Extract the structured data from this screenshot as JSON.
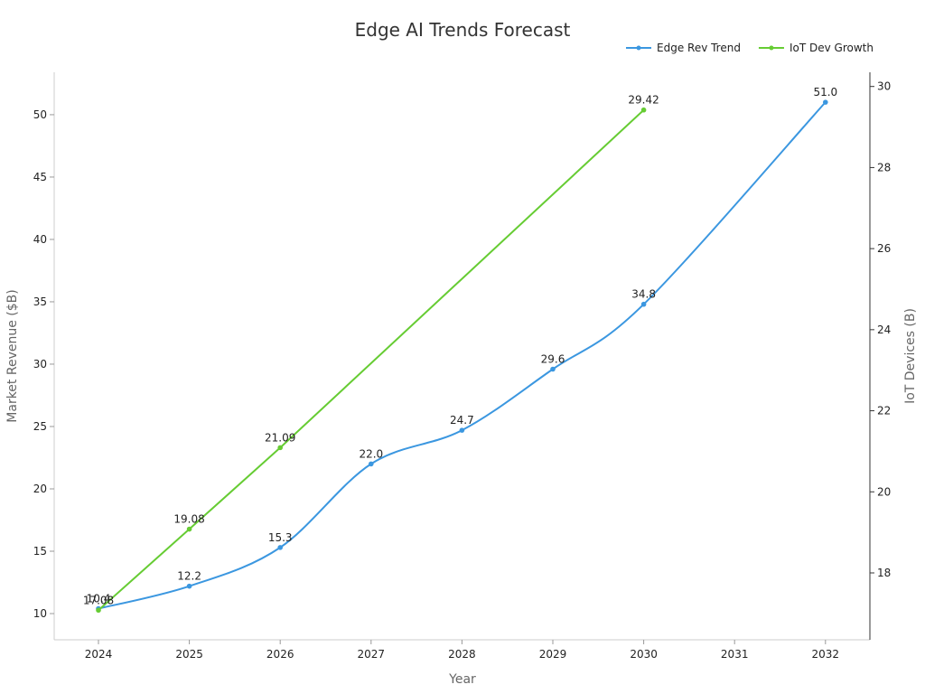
{
  "chart_data": {
    "type": "line",
    "title": "Edge AI Trends Forecast",
    "xlabel": "Year",
    "ylabel_left": "Market Revenue ($B)",
    "ylabel_right": "IoT Devices (B)",
    "x_ticks": [
      "2024",
      "2025",
      "2026",
      "2027",
      "2028",
      "2029",
      "2030",
      "2031",
      "2032"
    ],
    "y_left_ticks": [
      "10",
      "15",
      "20",
      "25",
      "30",
      "35",
      "40",
      "45",
      "50"
    ],
    "y_right_ticks": [
      "18",
      "20",
      "22",
      "24",
      "26",
      "28",
      "30"
    ],
    "y_left_range": [
      7.9,
      53.4
    ],
    "y_right_range": [
      16.35,
      30.35
    ],
    "legend_position": "top-right",
    "grid": false,
    "series": [
      {
        "name": "Edge Rev Trend",
        "axis": "left",
        "color": "#3b97e0",
        "smooth": true,
        "x": [
          2024,
          2025,
          2026,
          2027,
          2028,
          2029,
          2030,
          2032
        ],
        "values": [
          10.4,
          12.2,
          15.3,
          22.0,
          24.7,
          29.6,
          34.8,
          51.0
        ],
        "labels": [
          "10.4",
          "12.2",
          "15.3",
          "22.0",
          "24.7",
          "29.6",
          "34.8",
          "51.0"
        ]
      },
      {
        "name": "IoT Dev Growth",
        "axis": "right",
        "color": "#66cc33",
        "smooth": false,
        "x": [
          2024,
          2025,
          2026,
          2030
        ],
        "values": [
          17.08,
          19.08,
          21.09,
          29.42
        ],
        "labels": [
          "17.08",
          "19.08",
          "21.09",
          "29.42"
        ]
      }
    ]
  }
}
